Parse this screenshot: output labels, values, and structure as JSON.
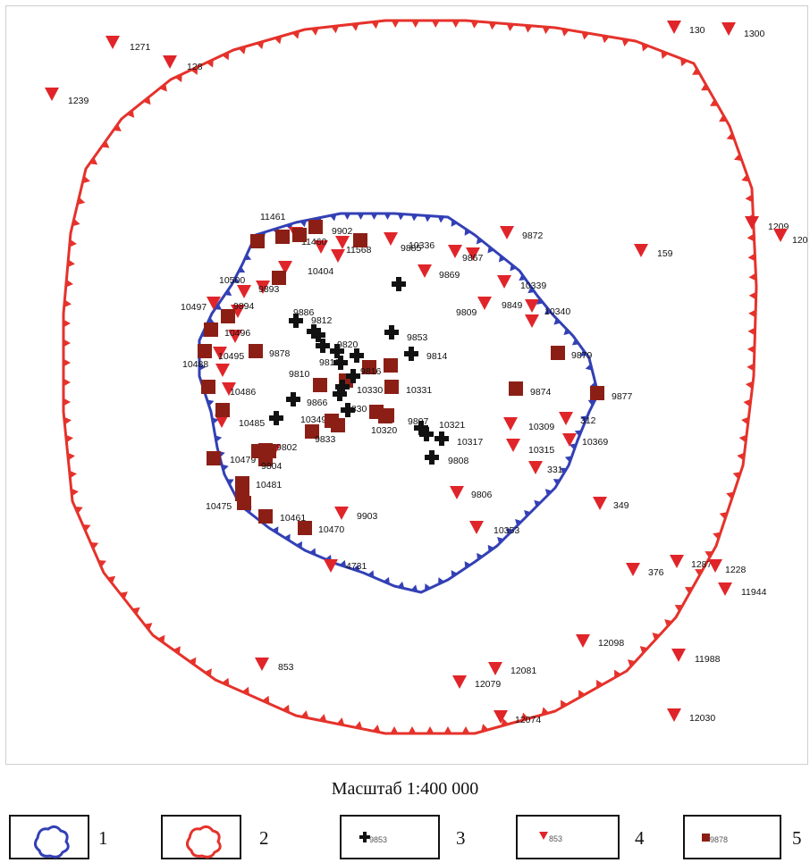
{
  "scale": "Масштаб 1:400 000",
  "colors": {
    "blue_contour": "#3340b5",
    "red_contour": "#e5322b",
    "cross": "#111111",
    "triangle": "#e0252a",
    "square": "#8b1f16"
  },
  "legend": [
    {
      "number": "1",
      "symbol": "blue-contour",
      "sample_label": ""
    },
    {
      "number": "2",
      "symbol": "red-contour",
      "sample_label": ""
    },
    {
      "number": "3",
      "symbol": "cross",
      "sample_label": "9853"
    },
    {
      "number": "4",
      "symbol": "triangle",
      "sample_label": "853"
    },
    {
      "number": "5",
      "symbol": "square",
      "sample_label": "9878"
    }
  ],
  "triangle_labels": [
    "1271",
    "128",
    "1239",
    "130",
    "1300",
    "1209",
    "120",
    "159",
    "9872",
    "11461",
    "11460",
    "9902",
    "11568",
    "9885",
    "10336",
    "9867",
    "9869",
    "10404",
    "10339",
    "9809",
    "9849",
    "10340",
    "10500",
    "9893",
    "10497",
    "9894",
    "10496",
    "10495",
    "10488",
    "10486",
    "10485",
    "10479",
    "10309",
    "312",
    "10315",
    "10369",
    "331",
    "9806",
    "349",
    "9903",
    "10353",
    "4731",
    "376",
    "1287",
    "1228",
    "11944",
    "12098",
    "11988",
    "853",
    "12081",
    "12079",
    "12074",
    "12030"
  ],
  "square_labels": [
    "9878",
    "9879",
    "9874",
    "9877",
    "10330",
    "10331",
    "10320",
    "10349",
    "9833",
    "9802",
    "9804",
    "10481",
    "10475",
    "10461",
    "10470"
  ],
  "cross_labels": [
    "9886",
    "9812",
    "9820",
    "9813",
    "9816",
    "9853",
    "9814",
    "9810",
    "9866",
    "9830",
    "9807",
    "10321",
    "10317",
    "9808"
  ]
}
